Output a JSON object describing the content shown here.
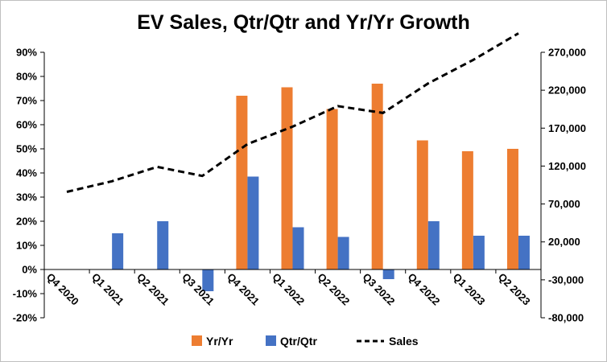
{
  "chart_data": {
    "type": "bar",
    "title": "EV Sales, Qtr/Qtr and Yr/Yr Growth",
    "categories": [
      "Q4 2020",
      "Q1 2021",
      "Q2 2021",
      "Q3 2021",
      "Q4 2021",
      "Q1 2022",
      "Q2 2022",
      "Q3 2022",
      "Q4 2022",
      "Q1 2023",
      "Q2 2023"
    ],
    "series": [
      {
        "name": "Yr/Yr",
        "type": "bar",
        "axis": "left",
        "color": "#ED7D31",
        "values": [
          null,
          null,
          null,
          null,
          0.72,
          0.755,
          0.665,
          0.77,
          0.535,
          0.49,
          0.5
        ]
      },
      {
        "name": "Qtr/Qtr",
        "type": "bar",
        "axis": "left",
        "color": "#4472C4",
        "values": [
          null,
          0.15,
          0.2,
          -0.09,
          0.385,
          0.175,
          0.135,
          -0.04,
          0.2,
          0.14,
          0.14
        ]
      },
      {
        "name": "Sales",
        "type": "line",
        "axis": "right",
        "color": "#000000",
        "style": "dashed",
        "values": [
          86000,
          100000,
          119000,
          107000,
          149000,
          172000,
          199000,
          190000,
          229000,
          260000,
          295000
        ]
      }
    ],
    "y_left": {
      "ylim": [
        -0.2,
        0.9
      ],
      "ticks": [
        0.9,
        0.8,
        0.7,
        0.6,
        0.5,
        0.4,
        0.3,
        0.2,
        0.1,
        0.0,
        -0.1,
        -0.2
      ],
      "tick_labels": [
        "90%",
        "80%",
        "70%",
        "60%",
        "50%",
        "40%",
        "30%",
        "20%",
        "10%",
        "0%",
        "-10%",
        "-20%"
      ]
    },
    "y_right": {
      "ylim": [
        -80000,
        270000
      ],
      "ticks": [
        270000,
        220000,
        170000,
        120000,
        70000,
        20000,
        -30000,
        -80000
      ],
      "tick_labels": [
        "270,000",
        "220,000",
        "170,000",
        "120,000",
        "70,000",
        "20,000",
        "-30,000",
        "-80,000"
      ]
    },
    "legend": {
      "position": "bottom",
      "labels": [
        "Yr/Yr",
        "Qtr/Qtr",
        "Sales"
      ]
    },
    "grid": false
  }
}
